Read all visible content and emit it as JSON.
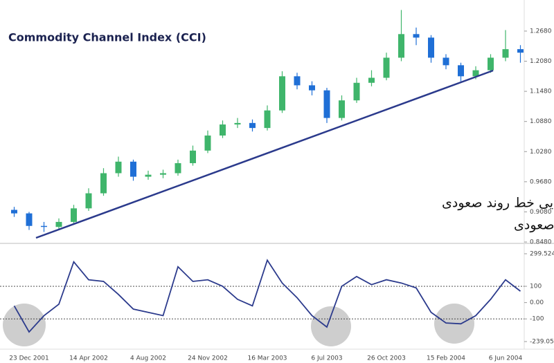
{
  "chart_data": [
    {
      "type": "candlestick",
      "title": "Commodity Channel Index (CCI)",
      "open": [
        0.912,
        0.905,
        0.88,
        0.878,
        0.888,
        0.915,
        0.945,
        0.985,
        1.008,
        0.978,
        0.982,
        0.985,
        1.005,
        1.03,
        1.06,
        1.082,
        1.085,
        1.075,
        1.11,
        1.178,
        1.16,
        1.15,
        1.095,
        1.13,
        1.165,
        1.175,
        1.215,
        1.262,
        1.255,
        1.215,
        1.2,
        1.178,
        1.19,
        1.215,
        1.232
      ],
      "high": [
        0.918,
        0.908,
        0.888,
        0.895,
        0.922,
        0.955,
        0.995,
        1.018,
        1.012,
        0.99,
        0.992,
        1.012,
        1.04,
        1.07,
        1.09,
        1.095,
        1.092,
        1.12,
        1.188,
        1.185,
        1.168,
        1.155,
        1.14,
        1.175,
        1.19,
        1.225,
        1.31,
        1.275,
        1.26,
        1.222,
        1.205,
        1.198,
        1.222,
        1.27,
        1.24
      ],
      "low": [
        0.898,
        0.872,
        0.868,
        0.872,
        0.884,
        0.91,
        0.94,
        0.978,
        0.97,
        0.972,
        0.975,
        0.98,
        1.0,
        1.025,
        1.055,
        1.075,
        1.068,
        1.07,
        1.105,
        1.152,
        1.14,
        1.085,
        1.09,
        1.125,
        1.158,
        1.17,
        1.208,
        1.24,
        1.205,
        1.192,
        1.168,
        1.172,
        1.185,
        1.208,
        1.205
      ],
      "close": [
        0.905,
        0.88,
        0.878,
        0.888,
        0.915,
        0.945,
        0.985,
        1.008,
        0.978,
        0.982,
        0.985,
        1.005,
        1.03,
        1.06,
        1.082,
        1.085,
        1.075,
        1.11,
        1.178,
        1.16,
        1.15,
        1.095,
        1.13,
        1.165,
        1.175,
        1.215,
        1.262,
        1.255,
        1.215,
        1.2,
        1.178,
        1.19,
        1.215,
        1.232,
        1.225
      ],
      "up_color": "#3fb56b",
      "down_color": "#1f6fd6",
      "ylim": [
        0.848,
        1.323
      ],
      "yticks": [
        {
          "value": 1.268,
          "label": "1.2680"
        },
        {
          "value": 1.208,
          "label": "1.2080"
        },
        {
          "value": 1.148,
          "label": "1.1480"
        },
        {
          "value": 1.088,
          "label": "1.0880"
        },
        {
          "value": 1.028,
          "label": "1.0280"
        },
        {
          "value": 0.968,
          "label": "0.9680"
        },
        {
          "value": 0.908,
          "label": "0.9080"
        },
        {
          "value": 0.848,
          "label": "0.8480"
        }
      ],
      "annotations": [
        "همگرایی خط روند صعودی",
        "و اندیکاتور سی سی آی برای تایید روند صعودی"
      ]
    },
    {
      "type": "line",
      "color": "#2b3a8c",
      "categories": [
        null,
        "23 Dec 2001",
        null,
        null,
        null,
        "14 Apr 2002",
        null,
        null,
        null,
        "4 Aug 2002",
        null,
        null,
        null,
        "24 Nov 2002",
        null,
        null,
        null,
        "16 Mar 2003",
        null,
        null,
        null,
        "6 Jul 2003",
        null,
        null,
        null,
        "26 Oct 2003",
        null,
        null,
        null,
        "15 Feb 2004",
        null,
        null,
        null,
        "6 Jun 2004",
        null
      ],
      "values": [
        -20,
        -180,
        -80,
        -10,
        250,
        140,
        130,
        50,
        -40,
        -60,
        -80,
        220,
        130,
        140,
        100,
        20,
        -20,
        260,
        120,
        30,
        -80,
        -150,
        100,
        160,
        110,
        140,
        120,
        90,
        -60,
        -125,
        -130,
        -80,
        20,
        140,
        70
      ],
      "ylim": [
        -239.059,
        299.5242
      ],
      "yticks": [
        299.5242,
        100,
        {
          "value": 0,
          "label": "0.00"
        },
        -100,
        -239.059
      ],
      "reference_lines": [
        100,
        -100
      ]
    }
  ]
}
